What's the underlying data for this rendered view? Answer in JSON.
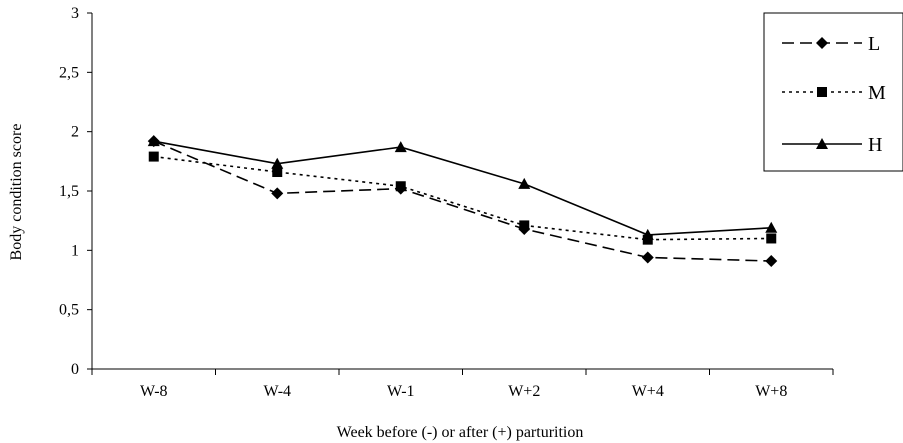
{
  "chart_data": {
    "type": "line",
    "title": "",
    "xlabel": "Week before (-) or after (+) parturition",
    "ylabel": "Body condition score",
    "categories": [
      "W-8",
      "W-4",
      "W-1",
      "W+2",
      "W+4",
      "W+8"
    ],
    "ylim": [
      0,
      3
    ],
    "yticks": [
      0,
      0.5,
      1,
      1.5,
      2,
      2.5,
      3
    ],
    "ytick_labels": [
      "0",
      "0,5",
      "1",
      "1,5",
      "2",
      "2,5",
      "3"
    ],
    "grid": false,
    "legend_position": "top-right",
    "series": [
      {
        "name": "L",
        "values": [
          1.92,
          1.48,
          1.52,
          1.18,
          0.94,
          0.91
        ],
        "line_style": "dashed",
        "marker": "diamond",
        "color": "#000000"
      },
      {
        "name": "M",
        "values": [
          1.79,
          1.66,
          1.54,
          1.21,
          1.09,
          1.1
        ],
        "line_style": "dotted",
        "marker": "square",
        "color": "#000000"
      },
      {
        "name": "H",
        "values": [
          1.92,
          1.73,
          1.87,
          1.56,
          1.13,
          1.19
        ],
        "line_style": "solid",
        "marker": "triangle",
        "color": "#000000"
      }
    ]
  }
}
